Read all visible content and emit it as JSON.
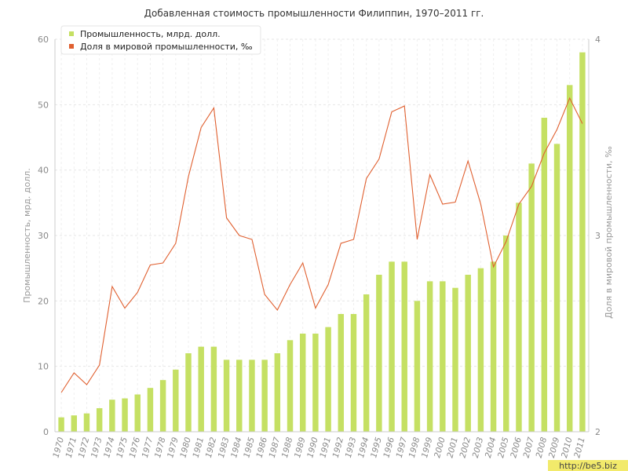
{
  "chart_data": {
    "type": "bar",
    "title": "Добавленная стоимость промышленности Филиппин, 1970–2011 гг.",
    "ylabel_left": "Промышленность, мрд. долл.",
    "ylabel_right": "Доля в мировой промышленности, ‰",
    "y_left_lim": [
      0,
      60
    ],
    "y_left_ticks": [
      0,
      10,
      20,
      30,
      40,
      50,
      60
    ],
    "y_right_lim": [
      2,
      4
    ],
    "y_right_ticks": [
      2,
      3,
      4
    ],
    "grid": true,
    "legend_position": "top-left",
    "categories": [
      "1970",
      "1971",
      "1972",
      "1973",
      "1974",
      "1975",
      "1976",
      "1977",
      "1978",
      "1979",
      "1980",
      "1981",
      "1982",
      "1983",
      "1984",
      "1985",
      "1986",
      "1987",
      "1988",
      "1989",
      "1990",
      "1991",
      "1992",
      "1993",
      "1994",
      "1995",
      "1996",
      "1997",
      "1998",
      "1999",
      "2000",
      "2001",
      "2002",
      "2003",
      "2004",
      "2005",
      "2006",
      "2007",
      "2008",
      "2009",
      "2010",
      "2011"
    ],
    "series": [
      {
        "name": "Промышленность, млрд. долл.",
        "type": "bar",
        "axis": "left",
        "color": "#c5e063",
        "values": [
          2.2,
          2.5,
          2.8,
          3.6,
          4.9,
          5.1,
          5.7,
          6.7,
          7.9,
          9.5,
          12,
          13,
          13,
          11,
          11,
          11,
          11,
          12,
          14,
          15,
          15,
          16,
          18,
          18,
          21,
          24,
          26,
          26,
          20,
          23,
          23,
          22,
          24,
          25,
          26,
          30,
          35,
          41,
          48,
          44,
          53,
          58
        ]
      },
      {
        "name": "Доля в мировой промышленности, ‰",
        "type": "line",
        "axis": "right",
        "color": "#e06030",
        "values": [
          2.2,
          2.3,
          2.24,
          2.34,
          2.74,
          2.63,
          2.71,
          2.85,
          2.86,
          2.96,
          3.3,
          3.55,
          3.65,
          3.09,
          3.0,
          2.98,
          2.7,
          2.62,
          2.75,
          2.86,
          2.63,
          2.75,
          2.96,
          2.98,
          3.29,
          3.39,
          3.63,
          3.66,
          2.98,
          3.31,
          3.16,
          3.17,
          3.38,
          3.16,
          2.84,
          2.97,
          3.16,
          3.25,
          3.42,
          3.54,
          3.7,
          3.57
        ]
      }
    ]
  },
  "watermark": "http://be5.biz"
}
